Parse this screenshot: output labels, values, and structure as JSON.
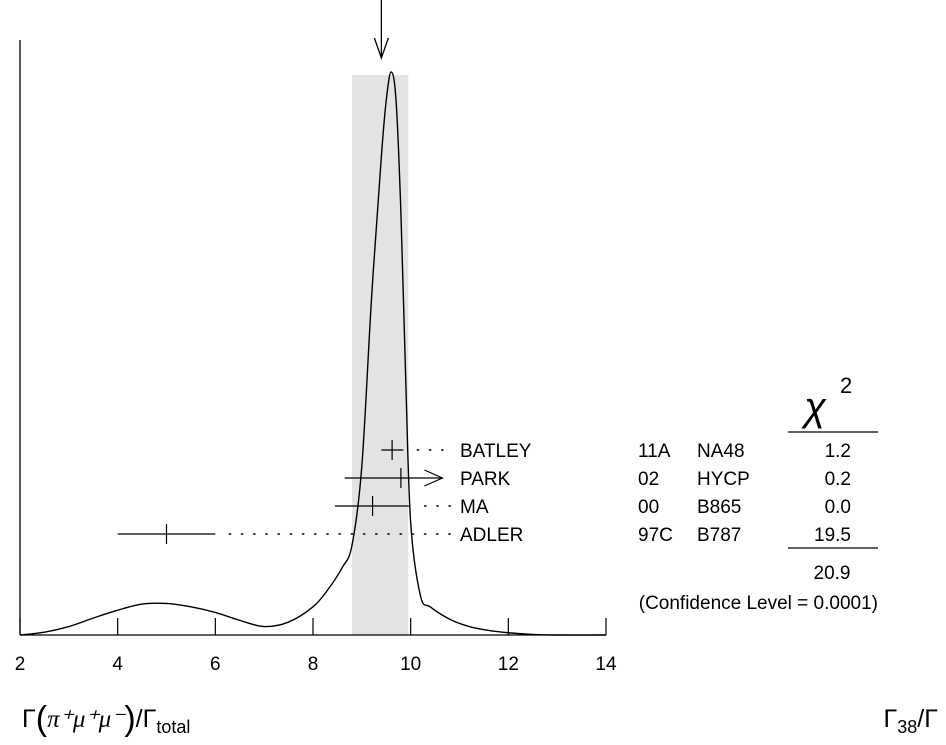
{
  "chart_data": {
    "type": "line",
    "title": "",
    "xlim": [
      2,
      14
    ],
    "x_ticks": [
      "2",
      "4",
      "6",
      "8",
      "10",
      "12",
      "14"
    ],
    "xlabel": {
      "gamma": "Γ",
      "process": "π⁺μ⁺μ⁻",
      "slash": "/",
      "total": "Γ",
      "total_sub": "total"
    },
    "node_label": {
      "base": "Γ",
      "sub": "38",
      "suffix": "/Γ"
    },
    "average": {
      "value": 9.4,
      "band": [
        8.8,
        9.95
      ]
    },
    "ideogram_x": [
      2.0,
      2.5,
      3.0,
      3.5,
      4.0,
      4.5,
      5.0,
      5.5,
      6.0,
      6.5,
      7.0,
      7.5,
      8.0,
      8.3,
      8.6,
      8.8,
      9.0,
      9.2,
      9.4,
      9.5,
      9.6,
      9.7,
      9.8,
      9.9,
      10.0,
      10.2,
      10.4,
      10.8,
      11.2,
      11.6,
      12.0,
      12.5,
      13.0,
      14.0
    ],
    "ideogram_y": [
      0.0,
      0.005,
      0.015,
      0.03,
      0.044,
      0.055,
      0.056,
      0.05,
      0.04,
      0.026,
      0.015,
      0.023,
      0.05,
      0.08,
      0.12,
      0.16,
      0.3,
      0.6,
      0.85,
      0.95,
      1.0,
      0.95,
      0.75,
      0.45,
      0.2,
      0.07,
      0.05,
      0.028,
      0.015,
      0.008,
      0.004,
      0.001,
      0.0,
      0.0
    ],
    "measurements": [
      {
        "experiment": "BATLEY",
        "year": "11A",
        "tecn": "NA48",
        "chi2": "1.2",
        "value": 9.62,
        "lo": 9.4,
        "hi": 9.85
      },
      {
        "experiment": "PARK",
        "year": "02",
        "tecn": "HYCP",
        "chi2": "0.2",
        "value": 9.8,
        "lo": 8.65,
        "hi": 10.65,
        "arrow": true
      },
      {
        "experiment": "MA",
        "year": "00",
        "tecn": "B865",
        "chi2": "0.0",
        "value": 9.22,
        "lo": 8.45,
        "hi": 10.0
      },
      {
        "experiment": "ADLER",
        "year": "97C",
        "tecn": "B787",
        "chi2": "19.5",
        "value": 5.0,
        "lo": 4.0,
        "hi": 6.0
      }
    ],
    "chi2_header": {
      "symbol": "χ",
      "power": "2"
    },
    "chi2_total": "20.9",
    "confidence_level": "(Confidence Level = 0.0001)"
  }
}
